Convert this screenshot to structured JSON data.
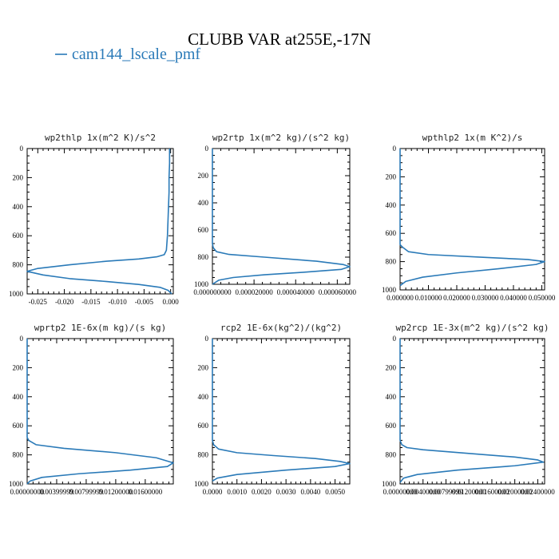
{
  "figure": {
    "title": "CLUBB VAR at255E,-17N",
    "legend": {
      "label": "cam144_lscale_pmf",
      "color": "#2a7ab8"
    }
  },
  "chart_data": [
    {
      "type": "line",
      "title": "wp2thlp   1x(m^2 K)/s^2",
      "xlim": [
        -0.027,
        0.0005
      ],
      "ylim": [
        1000,
        0
      ],
      "xticks": [
        -0.025,
        -0.02,
        -0.015,
        -0.01,
        -0.005,
        0.0
      ],
      "xtick_labels": [
        "-0.025",
        "-0.020",
        "-0.015",
        "-0.010",
        "-0.005",
        "0.000"
      ],
      "yticks": [
        0,
        200,
        400,
        600,
        800,
        1000
      ],
      "ytick_labels": [
        "0",
        "200",
        "400",
        "600",
        "800",
        "1000"
      ],
      "series": [
        {
          "x": [
            -0.0002,
            -0.0002,
            -0.0003,
            -0.0003,
            -0.0004,
            -0.0005,
            -0.0006,
            -0.0008,
            -0.0012,
            -0.0026,
            -0.006,
            -0.012,
            -0.019,
            -0.025,
            -0.027,
            -0.024,
            -0.019,
            -0.012,
            -0.006,
            -0.002,
            -0.0005,
            0.0002
          ],
          "y": [
            0,
            100,
            200,
            300,
            400,
            500,
            600,
            700,
            730,
            745,
            760,
            775,
            800,
            825,
            845,
            870,
            895,
            915,
            935,
            955,
            975,
            1000
          ]
        }
      ]
    },
    {
      "type": "line",
      "title": "wp2rtp   1x(m^2 kg)/(s^2 kg)",
      "xlim": [
        0,
        6.6e-05
      ],
      "ylim": [
        1000,
        0
      ],
      "xticks": [
        0,
        2e-05,
        4e-05,
        6e-05
      ],
      "xtick_labels": [
        "0.000000000",
        "0.000020000",
        "0.000040000",
        "0.000060000"
      ],
      "yticks": [
        0,
        200,
        400,
        600,
        800,
        1000
      ],
      "ytick_labels": [
        "0",
        "200",
        "400",
        "600",
        "800",
        "1000"
      ],
      "series": [
        {
          "x": [
            0,
            0,
            0,
            0,
            0,
            0,
            0,
            0,
            4e-07,
            2e-06,
            8e-06,
            2.5e-05,
            5e-05,
            6.3e-05,
            6.6e-05,
            6.2e-05,
            4.5e-05,
            2.5e-05,
            1e-05,
            3e-06,
            0
          ],
          "y": [
            0,
            100,
            200,
            300,
            400,
            500,
            600,
            700,
            730,
            760,
            780,
            800,
            830,
            855,
            870,
            890,
            910,
            930,
            950,
            970,
            1000
          ]
        }
      ]
    },
    {
      "type": "line",
      "title": "wpthlp2   1x(m K^2)/s",
      "xlim": [
        0,
        0.051
      ],
      "ylim": [
        1000,
        0
      ],
      "xticks": [
        0,
        0.01,
        0.02,
        0.03,
        0.04,
        0.05
      ],
      "xtick_labels": [
        "0.000000",
        "0.010000",
        "0.020000",
        "0.030000",
        "0.040000",
        "0.050000"
      ],
      "yticks": [
        0,
        200,
        400,
        600,
        800,
        1000
      ],
      "ytick_labels": [
        "0",
        "200",
        "400",
        "600",
        "800",
        "1000"
      ],
      "series": [
        {
          "x": [
            0,
            0,
            0,
            0,
            0,
            0,
            0,
            0,
            0.001,
            0.003,
            0.01,
            0.03,
            0.045,
            0.051,
            0.048,
            0.035,
            0.02,
            0.008,
            0.002,
            0
          ],
          "y": [
            0,
            100,
            200,
            300,
            400,
            500,
            600,
            680,
            700,
            730,
            750,
            770,
            785,
            800,
            820,
            850,
            880,
            910,
            940,
            970
          ]
        }
      ]
    },
    {
      "type": "line",
      "title": "wprtp2   1E-6x(m kg)/(s kg)",
      "xlim": [
        0,
        0.0198
      ],
      "ylim": [
        1000,
        0
      ],
      "xticks": [
        0,
        0.004,
        0.008,
        0.012,
        0.016
      ],
      "xtick_labels": [
        "0.00000000",
        "0.00399999",
        "0.00799999",
        "0.01200000",
        "0.01600000"
      ],
      "yticks": [
        0,
        200,
        400,
        600,
        800,
        1000
      ],
      "ytick_labels": [
        "0",
        "200",
        "400",
        "600",
        "800",
        "1000"
      ],
      "series": [
        {
          "x": [
            0,
            0,
            0,
            0,
            0,
            0,
            0,
            0,
            0.0002,
            0.0012,
            0.005,
            0.012,
            0.0175,
            0.0198,
            0.019,
            0.014,
            0.007,
            0.002,
            0.0004,
            0
          ],
          "y": [
            0,
            100,
            200,
            300,
            400,
            500,
            600,
            680,
            700,
            730,
            755,
            785,
            820,
            855,
            880,
            905,
            930,
            955,
            980,
            1000
          ]
        }
      ]
    },
    {
      "type": "line",
      "title": "rcp2   1E-6x(kg^2)/(kg^2)",
      "xlim": [
        0,
        0.0056
      ],
      "ylim": [
        1000,
        0
      ],
      "xticks": [
        0,
        0.001,
        0.002,
        0.003,
        0.004,
        0.005
      ],
      "xtick_labels": [
        "0.0000",
        "0.0010",
        "0.0020",
        "0.0030",
        "0.0040",
        "0.0050"
      ],
      "yticks": [
        0,
        200,
        400,
        600,
        800,
        1000
      ],
      "ytick_labels": [
        "0",
        "200",
        "400",
        "600",
        "800",
        "1000"
      ],
      "series": [
        {
          "x": [
            0,
            0,
            0,
            0,
            0,
            0,
            0,
            0,
            5e-05,
            0.00025,
            0.001,
            0.0025,
            0.0042,
            0.0052,
            0.0056,
            0.005,
            0.003,
            0.001,
            0.0002,
            0
          ],
          "y": [
            0,
            100,
            200,
            300,
            400,
            500,
            600,
            700,
            730,
            760,
            785,
            805,
            825,
            845,
            860,
            880,
            905,
            935,
            960,
            980
          ]
        }
      ]
    },
    {
      "type": "line",
      "title": "wp2rcp   1E-3x(m^2 kg)/(s^2 kg)",
      "xlim": [
        0,
        0.0252
      ],
      "ylim": [
        1000,
        0
      ],
      "xticks": [
        0,
        0.004,
        0.008,
        0.012,
        0.016,
        0.02,
        0.024
      ],
      "xtick_labels": [
        "0.00000000",
        "0.00400000",
        "0.00799999",
        "0.01200000",
        "0.01600000",
        "0.02000000",
        "0.02400000"
      ],
      "yticks": [
        0,
        200,
        400,
        600,
        800,
        1000
      ],
      "ytick_labels": [
        "0",
        "200",
        "400",
        "600",
        "800",
        "1000"
      ],
      "series": [
        {
          "x": [
            0,
            0,
            0,
            0,
            0,
            0,
            0,
            0,
            0.0003,
            0.0012,
            0.004,
            0.012,
            0.02,
            0.024,
            0.025,
            0.02,
            0.01,
            0.003,
            0.0006,
            0
          ],
          "y": [
            0,
            100,
            200,
            300,
            400,
            500,
            600,
            700,
            730,
            750,
            765,
            790,
            815,
            835,
            850,
            875,
            905,
            935,
            960,
            990
          ]
        }
      ]
    }
  ]
}
